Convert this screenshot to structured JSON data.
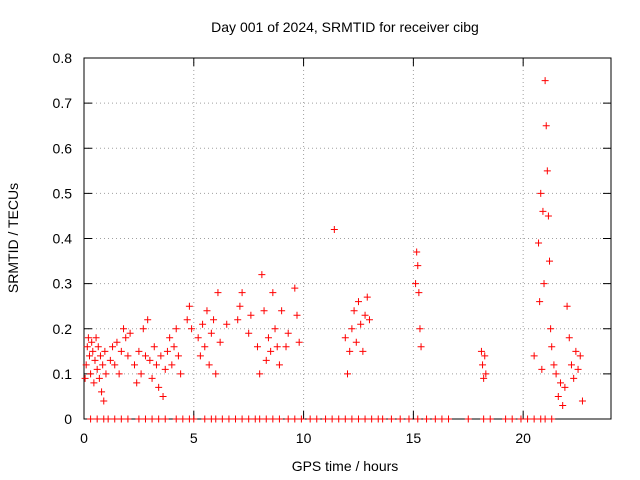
{
  "chart_data": {
    "type": "scatter",
    "title": "Day 001 of 2024, SRMTID for receiver cibg",
    "xlabel": "GPS time / hours",
    "ylabel": "SRMTID / TECUs",
    "xlim": [
      0,
      24
    ],
    "ylim": [
      0,
      0.8
    ],
    "xticks": [
      0,
      5,
      10,
      15,
      20
    ],
    "xtick_labels": [
      "0",
      "5",
      "10",
      "15",
      "20"
    ],
    "yticks": [
      0,
      0.1,
      0.2,
      0.3,
      0.4,
      0.5,
      0.6,
      0.7,
      0.8
    ],
    "ytick_labels": [
      "0",
      "0.1",
      "0.2",
      "0.3",
      "0.4",
      "0.5",
      "0.6",
      "0.7",
      "0.8"
    ],
    "grid": true,
    "marker": "+",
    "color": "#ff0000",
    "series": [
      {
        "name": "SRMTID",
        "points": [
          [
            0.05,
            0.09
          ],
          [
            0.1,
            0.12
          ],
          [
            0.15,
            0.16
          ],
          [
            0.2,
            0.18
          ],
          [
            0.25,
            0.14
          ],
          [
            0.3,
            0.1
          ],
          [
            0.35,
            0.17
          ],
          [
            0.4,
            0.15
          ],
          [
            0.45,
            0.08
          ],
          [
            0.5,
            0.13
          ],
          [
            0.55,
            0.18
          ],
          [
            0.6,
            0.11
          ],
          [
            0.65,
            0.16
          ],
          [
            0.7,
            0.09
          ],
          [
            0.75,
            0.14
          ],
          [
            0.8,
            0.06
          ],
          [
            0.85,
            0.12
          ],
          [
            0.9,
            0.04
          ],
          [
            0.95,
            0.15
          ],
          [
            1.0,
            0.1
          ],
          [
            1.2,
            0.13
          ],
          [
            1.3,
            0.16
          ],
          [
            1.4,
            0.12
          ],
          [
            1.5,
            0.17
          ],
          [
            1.6,
            0.1
          ],
          [
            1.7,
            0.15
          ],
          [
            1.8,
            0.2
          ],
          [
            1.9,
            0.18
          ],
          [
            2.0,
            0.14
          ],
          [
            2.1,
            0.19
          ],
          [
            2.3,
            0.12
          ],
          [
            2.4,
            0.08
          ],
          [
            2.5,
            0.15
          ],
          [
            2.6,
            0.1
          ],
          [
            2.7,
            0.2
          ],
          [
            2.8,
            0.14
          ],
          [
            2.9,
            0.22
          ],
          [
            3.0,
            0.13
          ],
          [
            3.1,
            0.09
          ],
          [
            3.2,
            0.16
          ],
          [
            3.3,
            0.12
          ],
          [
            3.4,
            0.07
          ],
          [
            3.5,
            0.14
          ],
          [
            3.6,
            0.05
          ],
          [
            3.7,
            0.11
          ],
          [
            3.8,
            0.15
          ],
          [
            3.9,
            0.18
          ],
          [
            4.0,
            0.12
          ],
          [
            4.1,
            0.16
          ],
          [
            4.2,
            0.2
          ],
          [
            4.3,
            0.14
          ],
          [
            4.4,
            0.1
          ],
          [
            4.7,
            0.22
          ],
          [
            4.8,
            0.25
          ],
          [
            4.9,
            0.2
          ],
          [
            5.2,
            0.18
          ],
          [
            5.3,
            0.14
          ],
          [
            5.4,
            0.21
          ],
          [
            5.5,
            0.16
          ],
          [
            5.6,
            0.24
          ],
          [
            5.7,
            0.12
          ],
          [
            5.8,
            0.19
          ],
          [
            5.9,
            0.22
          ],
          [
            6.0,
            0.1
          ],
          [
            6.1,
            0.28
          ],
          [
            6.2,
            0.17
          ],
          [
            6.5,
            0.21
          ],
          [
            7.0,
            0.22
          ],
          [
            7.1,
            0.25
          ],
          [
            7.2,
            0.28
          ],
          [
            7.5,
            0.19
          ],
          [
            7.6,
            0.23
          ],
          [
            7.9,
            0.16
          ],
          [
            8.0,
            0.1
          ],
          [
            8.1,
            0.32
          ],
          [
            8.2,
            0.24
          ],
          [
            8.3,
            0.13
          ],
          [
            8.4,
            0.18
          ],
          [
            8.5,
            0.15
          ],
          [
            8.6,
            0.28
          ],
          [
            8.7,
            0.2
          ],
          [
            8.8,
            0.16
          ],
          [
            8.9,
            0.12
          ],
          [
            9.0,
            0.24
          ],
          [
            9.2,
            0.16
          ],
          [
            9.3,
            0.19
          ],
          [
            9.6,
            0.29
          ],
          [
            9.7,
            0.23
          ],
          [
            9.8,
            0.17
          ],
          [
            11.4,
            0.42
          ],
          [
            11.9,
            0.18
          ],
          [
            12.0,
            0.1
          ],
          [
            12.1,
            0.15
          ],
          [
            12.2,
            0.2
          ],
          [
            12.3,
            0.24
          ],
          [
            12.4,
            0.17
          ],
          [
            12.5,
            0.26
          ],
          [
            12.6,
            0.21
          ],
          [
            12.7,
            0.15
          ],
          [
            12.8,
            0.23
          ],
          [
            12.9,
            0.27
          ],
          [
            13.0,
            0.22
          ],
          [
            15.1,
            0.3
          ],
          [
            15.15,
            0.37
          ],
          [
            15.2,
            0.34
          ],
          [
            15.25,
            0.28
          ],
          [
            15.3,
            0.2
          ],
          [
            15.35,
            0.16
          ],
          [
            18.1,
            0.15
          ],
          [
            18.15,
            0.12
          ],
          [
            18.2,
            0.09
          ],
          [
            18.25,
            0.14
          ],
          [
            18.3,
            0.1
          ],
          [
            20.5,
            0.14
          ],
          [
            20.7,
            0.39
          ],
          [
            20.75,
            0.26
          ],
          [
            20.8,
            0.5
          ],
          [
            20.85,
            0.11
          ],
          [
            20.9,
            0.46
          ],
          [
            20.95,
            0.3
          ],
          [
            21.0,
            0.75
          ],
          [
            21.05,
            0.65
          ],
          [
            21.1,
            0.55
          ],
          [
            21.15,
            0.45
          ],
          [
            21.2,
            0.35
          ],
          [
            21.25,
            0.2
          ],
          [
            21.3,
            0.16
          ],
          [
            21.4,
            0.12
          ],
          [
            21.5,
            0.1
          ],
          [
            21.6,
            0.05
          ],
          [
            21.7,
            0.08
          ],
          [
            21.8,
            0.03
          ],
          [
            21.9,
            0.07
          ],
          [
            22.0,
            0.25
          ],
          [
            22.1,
            0.18
          ],
          [
            22.2,
            0.12
          ],
          [
            22.3,
            0.09
          ],
          [
            22.4,
            0.15
          ],
          [
            22.5,
            0.11
          ],
          [
            22.6,
            0.14
          ],
          [
            22.7,
            0.04
          ]
        ],
        "zero_points_x": [
          0.3,
          0.6,
          0.9,
          1.1,
          1.4,
          1.7,
          2.0,
          2.5,
          2.8,
          3.1,
          3.4,
          3.7,
          4.2,
          4.5,
          4.8,
          5.0,
          5.5,
          5.8,
          6.0,
          6.3,
          6.6,
          6.9,
          7.2,
          7.5,
          7.8,
          8.0,
          8.3,
          8.6,
          8.9,
          9.3,
          9.6,
          9.9,
          10.3,
          10.6,
          11.0,
          11.3,
          11.6,
          11.9,
          12.2,
          12.5,
          12.8,
          13.1,
          13.4,
          13.6,
          14.0,
          14.4,
          14.8,
          15.2,
          15.6,
          16.0,
          16.3,
          16.6,
          17.5,
          18.2,
          18.5,
          19.2,
          19.5,
          19.9,
          20.2,
          20.5,
          20.8,
          21.0,
          21.3
        ]
      }
    ]
  }
}
